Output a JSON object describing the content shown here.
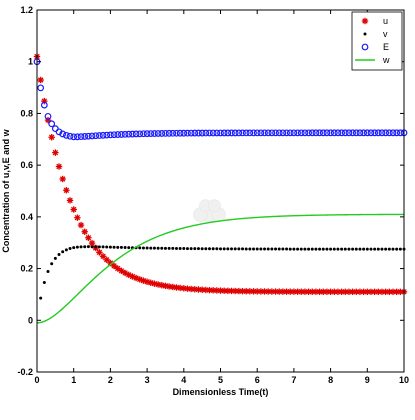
{
  "chart_data": {
    "type": "scatter",
    "title": "",
    "xlabel": "Dimensionless Time(t)",
    "ylabel": "Concentration of u,v,E and w",
    "xlim": [
      0,
      10
    ],
    "ylim": [
      -0.2,
      1.2
    ],
    "xticks": [
      "0",
      "1",
      "2",
      "3",
      "4",
      "5",
      "6",
      "7",
      "8",
      "9",
      "10"
    ],
    "yticks": [
      "-0.2",
      "0",
      "0.2",
      "0.4",
      "0.6",
      "0.8",
      "1",
      "1.2"
    ],
    "grid": false,
    "legend_position": "top-right",
    "series": [
      {
        "name": "u",
        "marker": "star",
        "color": "#e00000",
        "model": "decay",
        "x0": 0,
        "x1": 10,
        "step": 0.1,
        "start": 1.02,
        "end": 0.11,
        "rate": 1.05,
        "sample_points": [
          [
            0,
            1.02
          ],
          [
            0.5,
            0.63
          ],
          [
            1,
            0.42
          ],
          [
            1.5,
            0.3
          ],
          [
            2,
            0.22
          ],
          [
            3,
            0.15
          ],
          [
            4,
            0.12
          ],
          [
            6,
            0.11
          ],
          [
            10,
            0.11
          ]
        ]
      },
      {
        "name": "v",
        "marker": "dot",
        "color": "#000000",
        "model": "rise_then_settle",
        "x0": 0.1,
        "x1": 10,
        "step": 0.1,
        "peak": 0.29,
        "end": 0.275,
        "rate": 3.5,
        "sample_points": [
          [
            0.1,
            0.09
          ],
          [
            0.3,
            0.2
          ],
          [
            0.5,
            0.25
          ],
          [
            1,
            0.29
          ],
          [
            2,
            0.285
          ],
          [
            4,
            0.278
          ],
          [
            10,
            0.275
          ]
        ]
      },
      {
        "name": "E",
        "marker": "circle",
        "color": "#1a1aff",
        "model": "dip_recover",
        "x0": 0,
        "x1": 10,
        "step": 0.1,
        "start": 1.0,
        "min": 0.705,
        "min_at": 1.0,
        "end": 0.725,
        "sample_points": [
          [
            0,
            1.0
          ],
          [
            0.2,
            0.84
          ],
          [
            0.5,
            0.73
          ],
          [
            1,
            0.705
          ],
          [
            2,
            0.715
          ],
          [
            4,
            0.725
          ],
          [
            10,
            0.725
          ]
        ]
      },
      {
        "name": "w",
        "marker": "line",
        "color": "#22cc22",
        "model": "sigmoid",
        "x0": 0,
        "x1": 10,
        "step": 0.05,
        "start": -0.01,
        "end": 0.41,
        "rate": 0.9,
        "sample_points": [
          [
            0,
            -0.01
          ],
          [
            0.5,
            0.01
          ],
          [
            1,
            0.14
          ],
          [
            2,
            0.29
          ],
          [
            3,
            0.37
          ],
          [
            4,
            0.4
          ],
          [
            5,
            0.41
          ],
          [
            10,
            0.41
          ]
        ]
      }
    ],
    "watermark": true
  }
}
